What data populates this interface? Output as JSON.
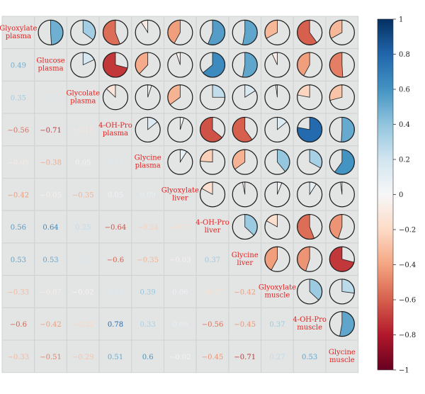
{
  "chart_data": {
    "type": "heatmap",
    "title": "",
    "variables": [
      "Glyoxylate plasma",
      "Glucose plasma",
      "Glycolate plasma",
      "4-OH-Pro plasma",
      "Glycine plasma",
      "Glyoxylate liver",
      "4-OH-Pro liver",
      "Glycine liver",
      "Glyoxylate muscle",
      "4-OH-Pro muscle",
      "Glycine muscle"
    ],
    "diagonal_labels": [
      [
        "Glyoxylate",
        "plasma"
      ],
      [
        "Glucose",
        "plasma"
      ],
      [
        "Glycolate",
        "plasma"
      ],
      [
        "4-OH-Pro",
        "plasma"
      ],
      [
        "Glycine",
        "plasma"
      ],
      [
        "Glyoxylate",
        "liver"
      ],
      [
        "4-OH-Pro",
        "liver"
      ],
      [
        "Glycine",
        "liver"
      ],
      [
        "Glyoxylate",
        "muscle"
      ],
      [
        "4-OH-Pro",
        "muscle"
      ],
      [
        "Glycine",
        "muscle"
      ]
    ],
    "lower_triangle_format": "numbers",
    "upper_triangle_format": "pie",
    "correlations": [
      [
        null,
        0.49,
        0.35,
        -0.56,
        -0.09,
        -0.42,
        0.56,
        0.53,
        -0.33,
        -0.6,
        -0.33
      ],
      [
        0.49,
        null,
        0.18,
        -0.71,
        -0.38,
        -0.05,
        0.64,
        0.53,
        -0.07,
        -0.42,
        -0.51
      ],
      [
        0.35,
        0.18,
        null,
        -0.13,
        0.05,
        -0.35,
        0.25,
        0.16,
        -0.02,
        -0.22,
        -0.29
      ],
      [
        -0.56,
        -0.71,
        -0.13,
        null,
        0.14,
        0.05,
        -0.64,
        -0.6,
        0.14,
        0.78,
        0.51
      ],
      [
        -0.09,
        -0.38,
        0.05,
        0.14,
        null,
        0.09,
        -0.24,
        -0.35,
        0.39,
        0.33,
        0.6
      ],
      [
        -0.42,
        -0.05,
        -0.35,
        0.05,
        0.09,
        null,
        -0.17,
        -0.03,
        0.06,
        0.09,
        -0.02
      ],
      [
        0.56,
        0.64,
        0.25,
        -0.64,
        -0.24,
        -0.17,
        null,
        0.37,
        -0.17,
        -0.56,
        -0.45
      ],
      [
        0.53,
        0.53,
        0.16,
        -0.6,
        -0.35,
        -0.03,
        0.37,
        null,
        -0.42,
        -0.45,
        -0.71
      ],
      [
        -0.33,
        -0.07,
        -0.02,
        0.14,
        0.39,
        0.06,
        -0.17,
        -0.42,
        null,
        0.37,
        0.27
      ],
      [
        -0.6,
        -0.42,
        -0.22,
        0.78,
        0.33,
        0.09,
        -0.56,
        -0.45,
        0.37,
        null,
        0.53
      ],
      [
        -0.33,
        -0.51,
        -0.29,
        0.51,
        0.6,
        -0.02,
        -0.45,
        -0.71,
        0.27,
        0.53,
        null
      ]
    ],
    "colorbar": {
      "min": -1,
      "max": 1,
      "ticks": [
        1,
        0.8,
        0.6,
        0.4,
        0.2,
        0,
        -0.2,
        -0.4,
        -0.6,
        -0.8,
        -1
      ],
      "tick_labels": [
        "1",
        "0.8",
        "0.6",
        "0.4",
        "0.2",
        "0",
        "−0.2",
        "−0.4",
        "−0.6",
        "−0.8",
        "−1"
      ],
      "stops": [
        "#67001f",
        "#b2182b",
        "#d6604d",
        "#f4a582",
        "#fddbc7",
        "#f7f7f7",
        "#d1e5f0",
        "#92c5de",
        "#4393c3",
        "#2166ac",
        "#053061"
      ]
    },
    "colors": {
      "cell_background": "#e3e4e4",
      "grid_line": "#cfd3d3",
      "label_text": "#e8201f",
      "pie_outline": "#1a1a1a"
    }
  }
}
